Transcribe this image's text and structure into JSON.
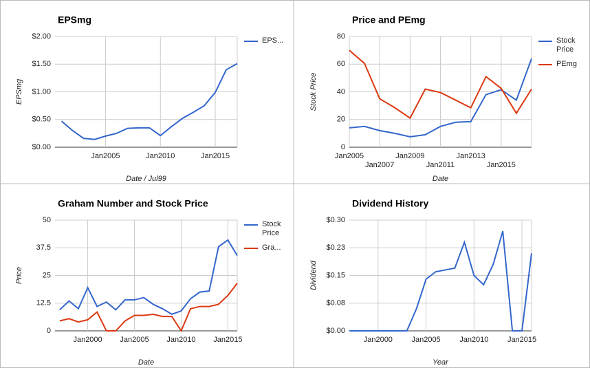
{
  "chart_data": [
    {
      "type": "line",
      "title": "EPSmg",
      "y_label": "EPSmg",
      "x_label": "Date / Jul99",
      "x": [
        2001,
        2002,
        2003,
        2004,
        2005,
        2006,
        2007,
        2008,
        2009,
        2010,
        2011,
        2012,
        2013,
        2014,
        2015,
        2016,
        2017
      ],
      "series": [
        {
          "name": "EPS...",
          "color": "#3366cc",
          "values": [
            0.47,
            0.3,
            0.16,
            0.14,
            0.2,
            0.25,
            0.34,
            0.35,
            0.35,
            0.21,
            0.37,
            0.52,
            0.63,
            0.75,
            0.99,
            1.4,
            1.51
          ]
        }
      ],
      "xlim": [
        2000.4,
        2017
      ],
      "xticks": [
        {
          "value": 2005,
          "label": "Jan2005"
        },
        {
          "value": 2010,
          "label": "Jan2010"
        },
        {
          "value": 2015,
          "label": "Jan2015"
        }
      ],
      "ylim": [
        0,
        2
      ],
      "yticks": [
        {
          "value": 0,
          "label": "$0.00"
        },
        {
          "value": 0.5,
          "label": "$0.50"
        },
        {
          "value": 1,
          "label": "$1.00"
        },
        {
          "value": 1.5,
          "label": "$1.50"
        },
        {
          "value": 2,
          "label": "$2.00"
        }
      ],
      "grid": true
    },
    {
      "type": "line",
      "title": "Price and PEmg",
      "y_label": "Stock Price",
      "x_label": "Date",
      "x": [
        2005,
        2006,
        2007,
        2008,
        2009,
        2010,
        2011,
        2012,
        2013,
        2014,
        2015,
        2016,
        2017
      ],
      "series": [
        {
          "name": "Stock Price",
          "color": "#3366cc",
          "values": [
            14,
            15,
            12,
            10,
            7.5,
            9,
            15,
            18,
            18.5,
            38,
            41.5,
            34,
            64
          ]
        },
        {
          "name": "PEmg",
          "color": "#dc3912",
          "values": [
            70,
            60.5,
            35,
            28.5,
            21,
            42,
            39.5,
            34,
            28.5,
            51,
            42.5,
            24.5,
            42
          ]
        }
      ],
      "xlim": [
        2005,
        2017
      ],
      "xticks": [
        {
          "value": 2005,
          "label": "Jan2005"
        },
        {
          "value": 2007,
          "label": "Jan2007"
        },
        {
          "value": 2009,
          "label": "Jan2009"
        },
        {
          "value": 2011,
          "label": "Jan2011"
        },
        {
          "value": 2013,
          "label": "Jan2013"
        },
        {
          "value": 2015,
          "label": "Jan2015"
        }
      ],
      "ylim": [
        0,
        80
      ],
      "yticks": [
        0,
        20,
        40,
        60,
        80
      ],
      "grid": true
    },
    {
      "type": "line",
      "title": "Graham Number and Stock Price",
      "y_label": "Price",
      "x_label": "Date",
      "x": [
        1997,
        1998,
        1999,
        2000,
        2001,
        2002,
        2003,
        2004,
        2005,
        2006,
        2007,
        2008,
        2009,
        2010,
        2011,
        2012,
        2013,
        2014,
        2015,
        2016
      ],
      "series": [
        {
          "name": "Stock Price",
          "color": "#3366cc",
          "values": [
            9.5,
            13.5,
            10,
            19.5,
            11,
            13,
            9.5,
            14,
            14,
            15,
            12,
            10,
            7.5,
            9,
            14.5,
            17.5,
            18,
            38,
            41,
            34
          ]
        },
        {
          "name": "Gra...",
          "color": "#dc3912",
          "values": [
            4.5,
            5.5,
            4,
            5,
            8.5,
            0,
            0,
            4.5,
            7,
            7,
            7.5,
            6.5,
            6.5,
            0,
            10,
            11,
            11,
            12,
            16,
            21.5
          ]
        }
      ],
      "xlim": [
        1996.5,
        2016
      ],
      "xticks": [
        {
          "value": 2000,
          "label": "Jan2000"
        },
        {
          "value": 2005,
          "label": "Jan2005"
        },
        {
          "value": 2010,
          "label": "Jan2010"
        },
        {
          "value": 2015,
          "label": "Jan2015"
        }
      ],
      "ylim": [
        0,
        50
      ],
      "yticks": [
        0,
        12.5,
        25,
        37.5,
        50
      ],
      "grid": true
    },
    {
      "type": "line",
      "title": "Dividend History",
      "y_label": "Dividend",
      "x_label": "Year",
      "x": [
        1997,
        1998,
        1999,
        2000,
        2001,
        2002,
        2003,
        2004,
        2005,
        2006,
        2007,
        2008,
        2009,
        2010,
        2011,
        2012,
        2013,
        2014,
        2015,
        2016
      ],
      "series": [
        {
          "name": "Dividend",
          "color": "#3366cc",
          "values": [
            0,
            0,
            0,
            0,
            0,
            0,
            0,
            0.06,
            0.14,
            0.16,
            0.165,
            0.17,
            0.24,
            0.15,
            0.125,
            0.18,
            0.27,
            0,
            0,
            0.21
          ]
        }
      ],
      "show_legend": false,
      "xlim": [
        1997,
        2016
      ],
      "xticks": [
        {
          "value": 2000,
          "label": "Jan2000"
        },
        {
          "value": 2005,
          "label": "Jan2005"
        },
        {
          "value": 2010,
          "label": "Jan2010"
        },
        {
          "value": 2015,
          "label": "Jan2015"
        }
      ],
      "ylim": [
        0,
        0.3
      ],
      "yticks": [
        {
          "value": 0,
          "label": "$0.00"
        },
        {
          "value": 0.075,
          "label": "$0.08"
        },
        {
          "value": 0.15,
          "label": "$0.15"
        },
        {
          "value": 0.225,
          "label": "$0.23"
        },
        {
          "value": 0.3,
          "label": "$0.30"
        }
      ],
      "grid": true
    }
  ]
}
